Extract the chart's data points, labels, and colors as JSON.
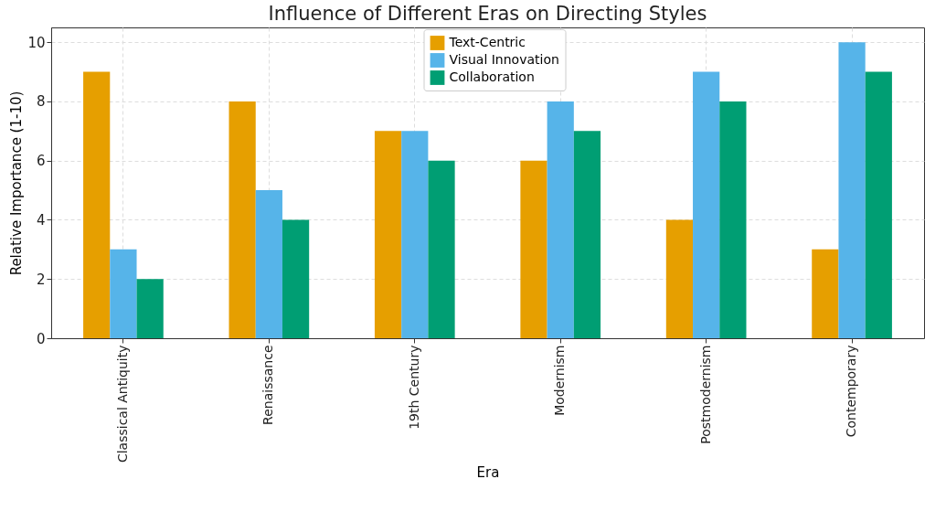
{
  "chart_data": {
    "type": "bar",
    "title": "Influence of Different Eras on Directing Styles",
    "xlabel": "Era",
    "ylabel": "Relative Importance (1-10)",
    "categories": [
      "Classical Antiquity",
      "Renaissance",
      "19th Century",
      "Modernism",
      "Postmodernism",
      "Contemporary"
    ],
    "series": [
      {
        "name": "Text-Centric",
        "color": "#e69f00",
        "values": [
          9,
          8,
          7,
          6,
          4,
          3
        ]
      },
      {
        "name": "Visual Innovation",
        "color": "#56b4e9",
        "values": [
          3,
          5,
          7,
          8,
          9,
          10
        ]
      },
      {
        "name": "Collaboration",
        "color": "#009e73",
        "values": [
          2,
          4,
          6,
          7,
          8,
          9
        ]
      }
    ],
    "ylim": [
      0,
      10.5
    ],
    "yticks": [
      0,
      2,
      4,
      6,
      8,
      10
    ],
    "grid": true,
    "legend": "top"
  }
}
